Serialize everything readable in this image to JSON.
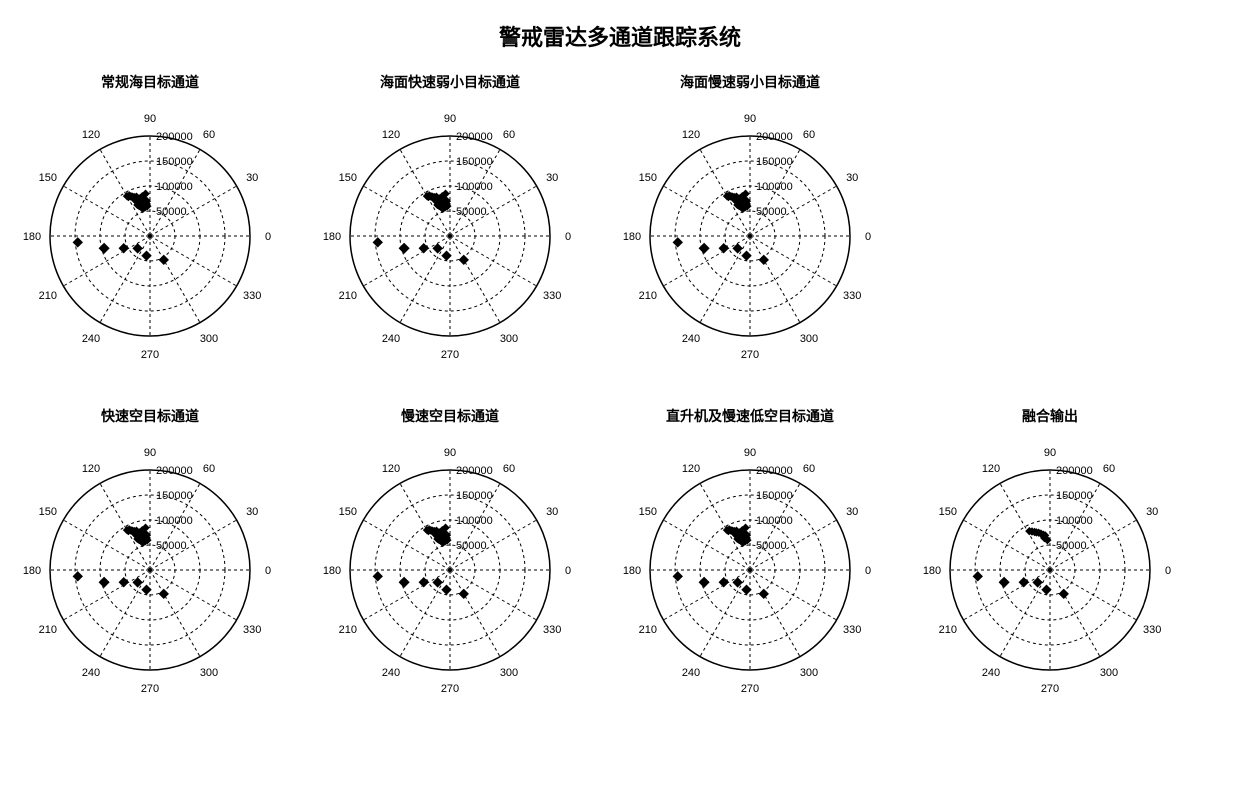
{
  "main_title": "警戒雷达多通道跟踪系统",
  "title_fontsize": 22,
  "panel_title_fontsize": 14,
  "tick_fontsize": 11,
  "colors": {
    "background": "#ffffff",
    "grid": "#000000",
    "text": "#000000",
    "marker": "#000000",
    "marker_fill": "#000000"
  },
  "polar_config": {
    "angles": [
      0,
      30,
      60,
      90,
      120,
      150,
      180,
      210,
      240,
      270,
      300,
      330
    ],
    "radii": [
      50000,
      100000,
      150000,
      200000
    ],
    "radius_labels": [
      "50000",
      "100000",
      "150000",
      "200000"
    ],
    "r_max": 200000,
    "grid_dash": "3,3",
    "grid_stroke_width": 1
  },
  "cluster_points": [
    {
      "r": 70000,
      "theta": 95
    },
    {
      "r": 72000,
      "theta": 98
    },
    {
      "r": 68000,
      "theta": 100
    },
    {
      "r": 74000,
      "theta": 102
    },
    {
      "r": 76000,
      "theta": 104
    },
    {
      "r": 78000,
      "theta": 106
    },
    {
      "r": 80000,
      "theta": 108
    },
    {
      "r": 82000,
      "theta": 110
    },
    {
      "r": 84000,
      "theta": 112
    },
    {
      "r": 86000,
      "theta": 114
    },
    {
      "r": 66000,
      "theta": 97
    },
    {
      "r": 69000,
      "theta": 103
    },
    {
      "r": 71000,
      "theta": 107
    },
    {
      "r": 73000,
      "theta": 111
    },
    {
      "r": 75000,
      "theta": 99
    },
    {
      "r": 77000,
      "theta": 105
    },
    {
      "r": 79000,
      "theta": 113
    },
    {
      "r": 81000,
      "theta": 101
    },
    {
      "r": 83000,
      "theta": 109
    },
    {
      "r": 85000,
      "theta": 96
    },
    {
      "r": 63000,
      "theta": 102
    },
    {
      "r": 65000,
      "theta": 108
    },
    {
      "r": 67000,
      "theta": 112
    },
    {
      "r": 62000,
      "theta": 98
    },
    {
      "r": 88000,
      "theta": 116
    },
    {
      "r": 90000,
      "theta": 118
    },
    {
      "r": 87000,
      "theta": 115
    },
    {
      "r": 89000,
      "theta": 119
    },
    {
      "r": 60000,
      "theta": 95
    },
    {
      "r": 64000,
      "theta": 110
    },
    {
      "r": 58000,
      "theta": 100
    },
    {
      "r": 56000,
      "theta": 105
    },
    {
      "r": 92000,
      "theta": 120
    },
    {
      "r": 91000,
      "theta": 117
    }
  ],
  "cluster_points_sparse": [
    {
      "r": 70000,
      "theta": 98
    },
    {
      "r": 75000,
      "theta": 104
    },
    {
      "r": 80000,
      "theta": 110
    },
    {
      "r": 85000,
      "theta": 115
    },
    {
      "r": 65000,
      "theta": 100
    },
    {
      "r": 60000,
      "theta": 95
    },
    {
      "r": 78000,
      "theta": 107
    },
    {
      "r": 82000,
      "theta": 112
    },
    {
      "r": 88000,
      "theta": 118
    },
    {
      "r": 72000,
      "theta": 101
    }
  ],
  "lower_points_filled": [
    {
      "r": 145000,
      "theta": 185
    },
    {
      "r": 95000,
      "theta": 195
    },
    {
      "r": 58000,
      "theta": 205
    },
    {
      "r": 35000,
      "theta": 225
    },
    {
      "r": 40000,
      "theta": 260
    },
    {
      "r": 55000,
      "theta": 300
    }
  ],
  "lower_points_open": [
    {
      "r": 95000,
      "theta": 195
    }
  ],
  "marker_size_dense": 3.5,
  "marker_size_lower": 4.5,
  "panels": [
    {
      "title": "常规海目标通道",
      "row": 0,
      "dense": "cluster_points",
      "lower": "lower_points_filled",
      "lower_open": "lower_points_open"
    },
    {
      "title": "海面快速弱小目标通道",
      "row": 0,
      "dense": "cluster_points",
      "lower": "lower_points_filled",
      "lower_open": "lower_points_open"
    },
    {
      "title": "海面慢速弱小目标通道",
      "row": 0,
      "dense": "cluster_points",
      "lower": "lower_points_filled",
      "lower_open": "lower_points_open"
    },
    {
      "title": "快速空目标通道",
      "row": 1,
      "dense": "cluster_points",
      "lower": "lower_points_filled",
      "lower_open": "lower_points_open"
    },
    {
      "title": "慢速空目标通道",
      "row": 1,
      "dense": "cluster_points",
      "lower": "lower_points_filled",
      "lower_open": "lower_points_open"
    },
    {
      "title": "直升机及慢速低空目标通道",
      "row": 1,
      "dense": "cluster_points",
      "lower": "lower_points_filled",
      "lower_open": "lower_points_open"
    },
    {
      "title": "融合输出",
      "row": 1,
      "dense": "cluster_points_sparse",
      "lower": "lower_points_filled",
      "lower_open": "lower_points_open"
    }
  ]
}
